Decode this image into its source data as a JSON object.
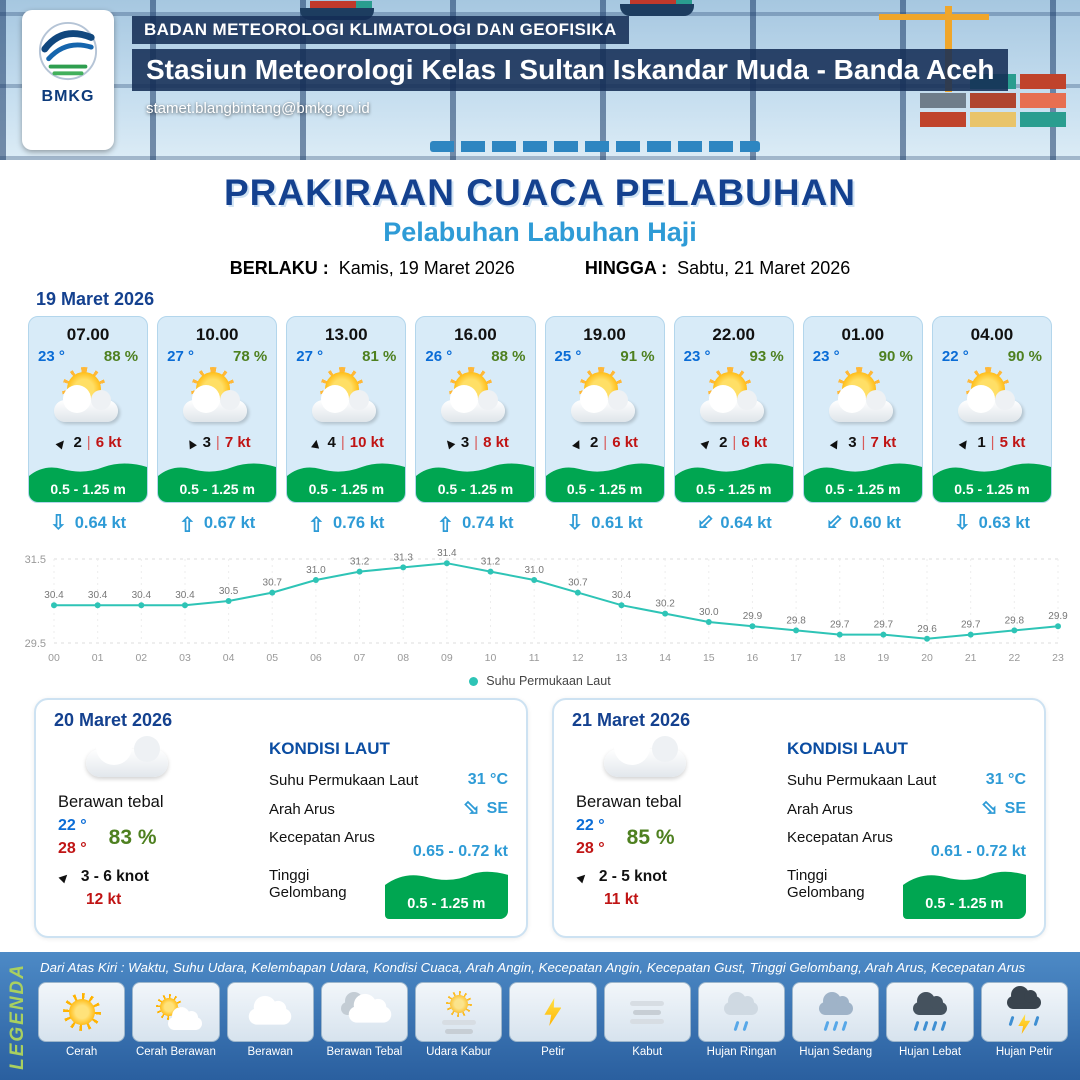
{
  "header": {
    "agency": "BADAN METEOROLOGI KLIMATOLOGI DAN GEOFISIKA",
    "station": "Stasiun Meteorologi Kelas I Sultan Iskandar Muda - Banda Aceh",
    "email": "stamet.blangbintang@bmkg.go.id",
    "logo_text": "BMKG"
  },
  "title": {
    "main": "PRAKIRAAN CUACA PELABUHAN",
    "subtitle": "Pelabuhan Labuhan Haji",
    "berlaku_label": "BERLAKU :",
    "berlaku_value": "Kamis, 19 Maret 2026",
    "hingga_label": "HINGGA :",
    "hingga_value": "Sabtu, 21 Maret 2026"
  },
  "forecast_date": "19 Maret 2026",
  "labels": {
    "sep": "|"
  },
  "icons": {
    "wind_arrow": "▲",
    "current_arrow": "⇩"
  },
  "cards": [
    {
      "time": "07.00",
      "temp": "23 °",
      "humidity": "88 %",
      "weather": "Cerah Berawan",
      "wind_speed": "2",
      "gust": "6 kt",
      "wind_dir_deg": 40,
      "wave": "0.5 - 1.25 m",
      "current": "0.64 kt",
      "current_dir_deg": 180
    },
    {
      "time": "10.00",
      "temp": "27 °",
      "humidity": "78 %",
      "weather": "Cerah Berawan",
      "wind_speed": "3",
      "gust": "7 kt",
      "wind_dir_deg": -30,
      "wave": "0.5 - 1.25 m",
      "current": "0.67 kt",
      "current_dir_deg": 0
    },
    {
      "time": "13.00",
      "temp": "27 °",
      "humidity": "81 %",
      "weather": "Cerah Berawan",
      "wind_speed": "4",
      "gust": "10 kt",
      "wind_dir_deg": 10,
      "wave": "0.5 - 1.25 m",
      "current": "0.76 kt",
      "current_dir_deg": 0
    },
    {
      "time": "16.00",
      "temp": "26 °",
      "humidity": "88 %",
      "weather": "Cerah Berawan",
      "wind_speed": "3",
      "gust": "8 kt",
      "wind_dir_deg": -40,
      "wave": "0.5 - 1.25 m",
      "current": "0.74 kt",
      "current_dir_deg": 0
    },
    {
      "time": "19.00",
      "temp": "25 °",
      "humidity": "91 %",
      "weather": "Cerah Berawan",
      "wind_speed": "2",
      "gust": "6 kt",
      "wind_dir_deg": 25,
      "wave": "0.5 - 1.25 m",
      "current": "0.61 kt",
      "current_dir_deg": 180
    },
    {
      "time": "22.00",
      "temp": "23 °",
      "humidity": "93 %",
      "weather": "Cerah Berawan",
      "wind_speed": "2",
      "gust": "6 kt",
      "wind_dir_deg": 45,
      "wave": "0.5 - 1.25 m",
      "current": "0.64 kt",
      "current_dir_deg": 225
    },
    {
      "time": "01.00",
      "temp": "23 °",
      "humidity": "90 %",
      "weather": "Cerah Berawan",
      "wind_speed": "3",
      "gust": "7 kt",
      "wind_dir_deg": 30,
      "wave": "0.5 - 1.25 m",
      "current": "0.60 kt",
      "current_dir_deg": 225
    },
    {
      "time": "04.00",
      "temp": "22 °",
      "humidity": "90 %",
      "weather": "Cerah Berawan",
      "wind_speed": "1",
      "gust": "5 kt",
      "wind_dir_deg": 35,
      "wave": "0.5 - 1.25 m",
      "current": "0.63 kt",
      "current_dir_deg": 180
    }
  ],
  "chart_data": {
    "type": "line",
    "title": "Suhu Permukaan Laut",
    "x": [
      "00",
      "01",
      "02",
      "03",
      "04",
      "05",
      "06",
      "07",
      "08",
      "09",
      "10",
      "11",
      "12",
      "13",
      "14",
      "15",
      "16",
      "17",
      "18",
      "19",
      "20",
      "21",
      "22",
      "23"
    ],
    "series": [
      {
        "name": "Suhu Permukaan Laut",
        "values": [
          30.4,
          30.4,
          30.4,
          30.4,
          30.5,
          30.7,
          31.0,
          31.2,
          31.3,
          31.4,
          31.2,
          31.0,
          30.7,
          30.4,
          30.2,
          30.0,
          29.9,
          29.8,
          29.7,
          29.7,
          29.6,
          29.7,
          29.8,
          29.9
        ]
      }
    ],
    "ylim": [
      29.5,
      31.5
    ],
    "line_color": "#2ec4b6",
    "legend": "Suhu Permukaan Laut",
    "legend_position": "bottom",
    "grid": true
  },
  "summary_cards": [
    {
      "date": "20 Maret 2026",
      "condition": "Berawan tebal",
      "temp_min": "22 °",
      "temp_max": "28 °",
      "humidity": "83 %",
      "wind_range": "3 - 6 knot",
      "wind_dir_deg": 45,
      "gust": "12 kt",
      "sea": {
        "heading": "KONDISI LAUT",
        "sst_label": "Suhu Permukaan Laut",
        "sst_value": "31 °C",
        "dir_label": "Arah Arus",
        "dir_value": "SE",
        "dir_deg": 135,
        "speed_label": "Kecepatan Arus",
        "speed_value": "0.65  - 0.72 kt",
        "wave_label": "Tinggi Gelombang",
        "wave_value": "0.5 - 1.25 m"
      }
    },
    {
      "date": "21 Maret 2026",
      "condition": "Berawan tebal",
      "temp_min": "22 °",
      "temp_max": "28 °",
      "humidity": "85 %",
      "wind_range": "2  - 5 knot",
      "wind_dir_deg": 45,
      "gust": "11 kt",
      "sea": {
        "heading": "KONDISI LAUT",
        "sst_label": "Suhu Permukaan Laut",
        "sst_value": "31 °C",
        "dir_label": "Arah Arus",
        "dir_value": "SE",
        "dir_deg": 135,
        "speed_label": "Kecepatan Arus",
        "speed_value": "0.61  - 0.72 kt",
        "wave_label": "Tinggi Gelombang",
        "wave_value": "0.5 - 1.25 m"
      }
    }
  ],
  "footer": {
    "note": "Dari Atas Kiri : Waktu, Suhu Udara, Kelembapan Udara, Kondisi Cuaca, Arah Angin, Kecepatan Angin, Kecepatan Gust, Tinggi Gelombang, Arah Arus, Kecepatan Arus",
    "legend_title": "LEGENDA",
    "items": [
      {
        "label": "Cerah",
        "icon": "cerah"
      },
      {
        "label": "Cerah Berawan",
        "icon": "cerah-berawan"
      },
      {
        "label": "Berawan",
        "icon": "berawan"
      },
      {
        "label": "Berawan Tebal",
        "icon": "berawan-tebal"
      },
      {
        "label": "Udara Kabur",
        "icon": "udara-kabur"
      },
      {
        "label": "Petir",
        "icon": "petir"
      },
      {
        "label": "Kabut",
        "icon": "kabut"
      },
      {
        "label": "Hujan Ringan",
        "icon": "hujan-ringan"
      },
      {
        "label": "Hujan Sedang",
        "icon": "hujan-sedang"
      },
      {
        "label": "Hujan Lebat",
        "icon": "hujan-lebat"
      },
      {
        "label": "Hujan Petir",
        "icon": "hujan-petir"
      }
    ]
  }
}
